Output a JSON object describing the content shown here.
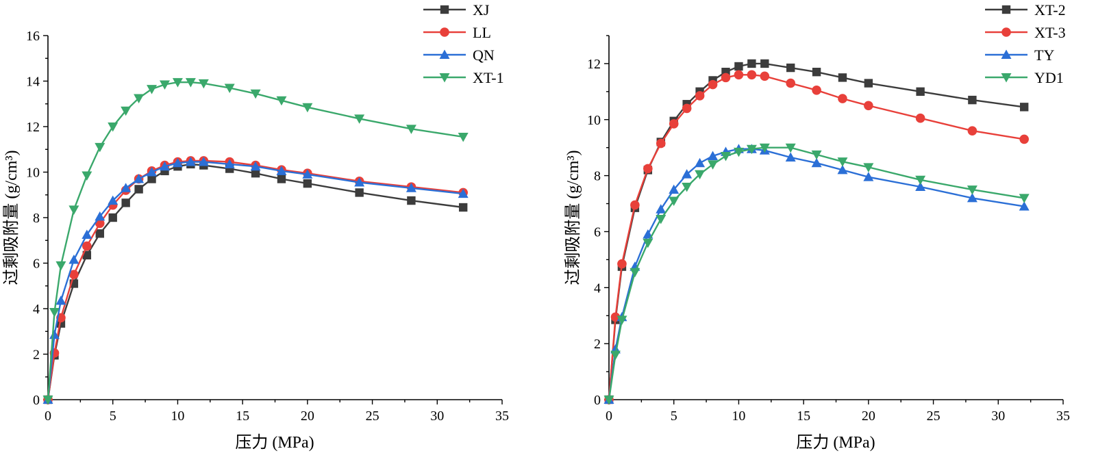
{
  "colors": {
    "black": "#3c3c3c",
    "red": "#e8403a",
    "blue": "#2b6fd6",
    "green": "#3aa86b"
  },
  "chart_data": [
    {
      "type": "line",
      "xlabel": "压力 (MPa)",
      "ylabel": "过剩吸附量 (g/cm³)",
      "xlim": [
        0,
        35
      ],
      "ylim": [
        0,
        16
      ],
      "xticks": [
        "0",
        "5",
        "10",
        "15",
        "20",
        "25",
        "30",
        "35"
      ],
      "yticks": [
        "0",
        "2",
        "4",
        "6",
        "8",
        "10",
        "12",
        "14",
        "16"
      ],
      "legend_position": "top-right",
      "series": [
        {
          "name": "XJ",
          "marker": "square",
          "color": "#3c3c3c",
          "x": [
            0,
            0.5,
            1,
            2,
            3,
            4,
            5,
            6,
            7,
            8,
            9,
            10,
            11,
            12,
            14,
            16,
            18,
            20,
            24,
            28,
            32
          ],
          "y": [
            0,
            1.95,
            3.35,
            5.1,
            6.35,
            7.3,
            8.0,
            8.65,
            9.25,
            9.7,
            10.05,
            10.25,
            10.35,
            10.3,
            10.15,
            9.95,
            9.7,
            9.5,
            9.1,
            8.75,
            8.45
          ]
        },
        {
          "name": "LL",
          "marker": "circle",
          "color": "#e8403a",
          "x": [
            0,
            0.5,
            1,
            2,
            3,
            4,
            5,
            6,
            7,
            8,
            9,
            10,
            11,
            12,
            14,
            16,
            18,
            20,
            24,
            28,
            32
          ],
          "y": [
            0,
            2.05,
            3.6,
            5.5,
            6.75,
            7.75,
            8.55,
            9.2,
            9.7,
            10.05,
            10.3,
            10.45,
            10.5,
            10.5,
            10.45,
            10.3,
            10.1,
            9.95,
            9.6,
            9.35,
            9.1
          ]
        },
        {
          "name": "QN",
          "marker": "triangle-up",
          "color": "#2b6fd6",
          "x": [
            0,
            0.5,
            1,
            2,
            3,
            4,
            5,
            6,
            7,
            8,
            9,
            10,
            11,
            12,
            14,
            16,
            18,
            20,
            24,
            28,
            32
          ],
          "y": [
            0,
            2.85,
            4.35,
            6.15,
            7.25,
            8.05,
            8.75,
            9.3,
            9.7,
            10.0,
            10.25,
            10.4,
            10.45,
            10.45,
            10.35,
            10.25,
            10.05,
            9.9,
            9.55,
            9.3,
            9.05
          ]
        },
        {
          "name": "XT-1",
          "marker": "triangle-down",
          "color": "#3aa86b",
          "x": [
            0,
            0.5,
            1,
            2,
            3,
            4,
            5,
            6,
            7,
            8,
            9,
            10,
            11,
            12,
            14,
            16,
            18,
            20,
            24,
            28,
            32
          ],
          "y": [
            0,
            3.85,
            5.9,
            8.35,
            9.85,
            11.1,
            12.0,
            12.7,
            13.25,
            13.65,
            13.85,
            13.95,
            13.95,
            13.9,
            13.7,
            13.45,
            13.15,
            12.85,
            12.35,
            11.9,
            11.55
          ]
        }
      ]
    },
    {
      "type": "line",
      "xlabel": "压力 (MPa)",
      "ylabel": "过剩吸附量 (g/cm³)",
      "xlim": [
        0,
        35
      ],
      "ylim": [
        0,
        13
      ],
      "xticks": [
        "0",
        "5",
        "10",
        "15",
        "20",
        "25",
        "30",
        "35"
      ],
      "yticks": [
        "0",
        "2",
        "4",
        "6",
        "8",
        "10",
        "12"
      ],
      "legend_position": "top-right",
      "series": [
        {
          "name": "XT-2",
          "marker": "square",
          "color": "#3c3c3c",
          "x": [
            0,
            0.5,
            1,
            2,
            3,
            4,
            5,
            6,
            7,
            8,
            9,
            10,
            11,
            12,
            14,
            16,
            18,
            20,
            24,
            28,
            32
          ],
          "y": [
            0,
            2.85,
            4.75,
            6.85,
            8.2,
            9.2,
            9.95,
            10.55,
            11.0,
            11.4,
            11.7,
            11.9,
            12.0,
            12.0,
            11.85,
            11.7,
            11.5,
            11.3,
            11.0,
            10.7,
            10.45
          ]
        },
        {
          "name": "XT-3",
          "marker": "circle",
          "color": "#e8403a",
          "x": [
            0,
            0.5,
            1,
            2,
            3,
            4,
            5,
            6,
            7,
            8,
            9,
            10,
            11,
            12,
            14,
            16,
            18,
            20,
            24,
            28,
            32
          ],
          "y": [
            0,
            2.95,
            4.85,
            6.95,
            8.25,
            9.15,
            9.85,
            10.4,
            10.85,
            11.25,
            11.5,
            11.6,
            11.6,
            11.55,
            11.3,
            11.05,
            10.75,
            10.5,
            10.05,
            9.6,
            9.3
          ]
        },
        {
          "name": "TY",
          "marker": "triangle-up",
          "color": "#2b6fd6",
          "x": [
            0,
            0.5,
            1,
            2,
            3,
            4,
            5,
            6,
            7,
            8,
            9,
            10,
            11,
            12,
            14,
            16,
            18,
            20,
            24,
            28,
            32
          ],
          "y": [
            0,
            1.8,
            2.95,
            4.75,
            5.9,
            6.8,
            7.5,
            8.05,
            8.45,
            8.7,
            8.85,
            8.95,
            8.95,
            8.9,
            8.65,
            8.45,
            8.2,
            7.95,
            7.6,
            7.2,
            6.9
          ]
        },
        {
          "name": "YD1",
          "marker": "triangle-down",
          "color": "#3aa86b",
          "x": [
            0,
            0.5,
            1,
            2,
            3,
            4,
            5,
            6,
            7,
            8,
            9,
            10,
            11,
            12,
            14,
            16,
            18,
            20,
            24,
            28,
            32
          ],
          "y": [
            0,
            1.6,
            2.85,
            4.55,
            5.6,
            6.45,
            7.1,
            7.6,
            8.05,
            8.4,
            8.7,
            8.85,
            8.95,
            9.0,
            9.0,
            8.75,
            8.5,
            8.3,
            7.85,
            7.5,
            7.2
          ]
        }
      ]
    }
  ]
}
